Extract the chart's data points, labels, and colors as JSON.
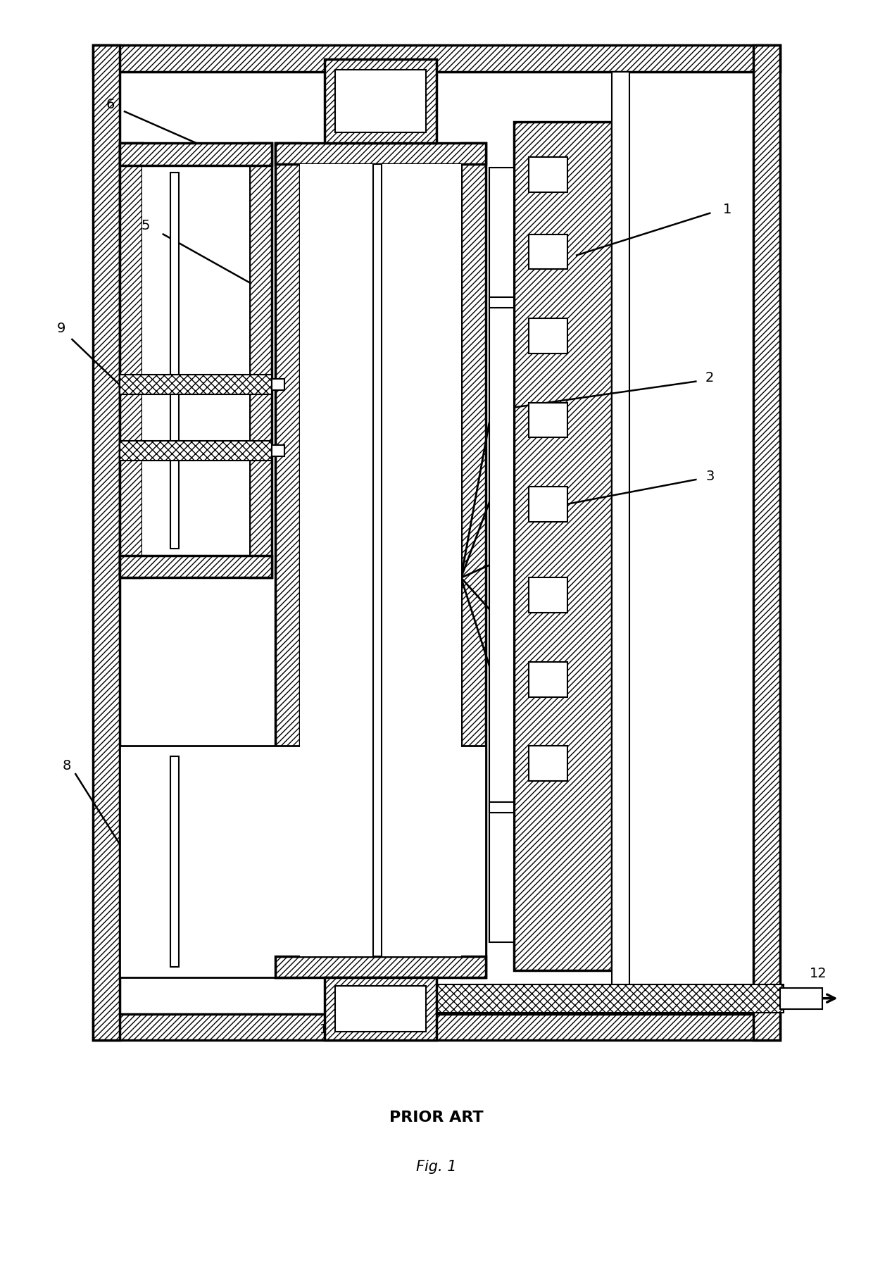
{
  "prior_art_label": "PRIOR ART",
  "fig_label": "Fig. 1",
  "bg_color": "#ffffff",
  "fig_width": 12.4,
  "fig_height": 18.12,
  "dpi": 100
}
